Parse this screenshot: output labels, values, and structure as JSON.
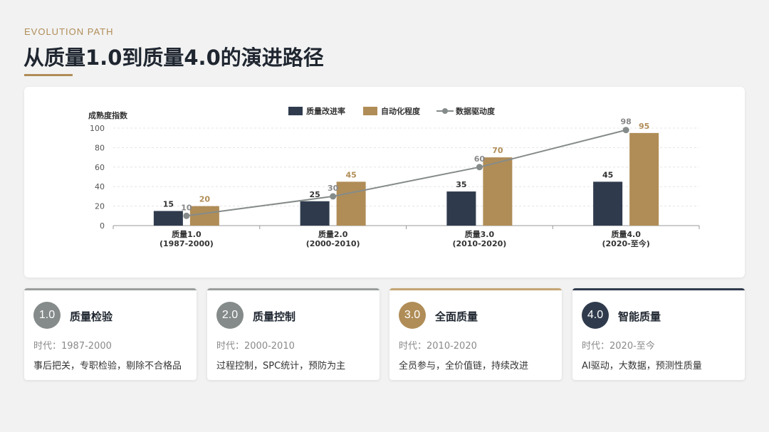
{
  "header": {
    "eyebrow": "EVOLUTION PATH",
    "title": "从质量1.0到质量4.0的演进路径"
  },
  "colors": {
    "accent": "#b08d57",
    "navy": "#2f3b4d",
    "gold": "#b08d57",
    "gray": "#858b8a"
  },
  "chart_data": {
    "type": "bar",
    "ylabel": "成熟度指数",
    "ylim": [
      0,
      100
    ],
    "yticks": [
      0,
      20,
      40,
      60,
      80,
      100
    ],
    "grid": true,
    "legend_position": "top-center",
    "categories": [
      [
        "质量1.0",
        "(1987-2000)"
      ],
      [
        "质量2.0",
        "(2000-2010)"
      ],
      [
        "质量3.0",
        "(2010-2020)"
      ],
      [
        "质量4.0",
        "(2020-至今)"
      ]
    ],
    "series": [
      {
        "name": "质量改进率",
        "kind": "bar",
        "color": "#2f3b4d",
        "values": [
          15,
          25,
          35,
          45
        ]
      },
      {
        "name": "自动化程度",
        "kind": "bar",
        "color": "#b08d57",
        "values": [
          20,
          45,
          70,
          95
        ]
      },
      {
        "name": "数据驱动度",
        "kind": "line",
        "color": "#858b8a",
        "values": [
          10,
          30,
          60,
          98
        ]
      }
    ]
  },
  "cards": [
    {
      "badge": "1.0",
      "name": "质量检验",
      "era": "时代：1987-2000",
      "desc": "事后把关，专职检验，剔除不合格品",
      "color": "#858b8a",
      "topbar": "#9a9e9d"
    },
    {
      "badge": "2.0",
      "name": "质量控制",
      "era": "时代：2000-2010",
      "desc": "过程控制，SPC统计，预防为主",
      "color": "#858b8a",
      "topbar": "#9a9e9d"
    },
    {
      "badge": "3.0",
      "name": "全面质量",
      "era": "时代：2010-2020",
      "desc": "全员参与，全价值链，持续改进",
      "color": "#b08d57",
      "topbar": "#c4a574"
    },
    {
      "badge": "4.0",
      "name": "智能质量",
      "era": "时代：2020-至今",
      "desc": "AI驱动，大数据，预测性质量",
      "color": "#2f3b4d",
      "topbar": "#2f3b4d"
    }
  ]
}
